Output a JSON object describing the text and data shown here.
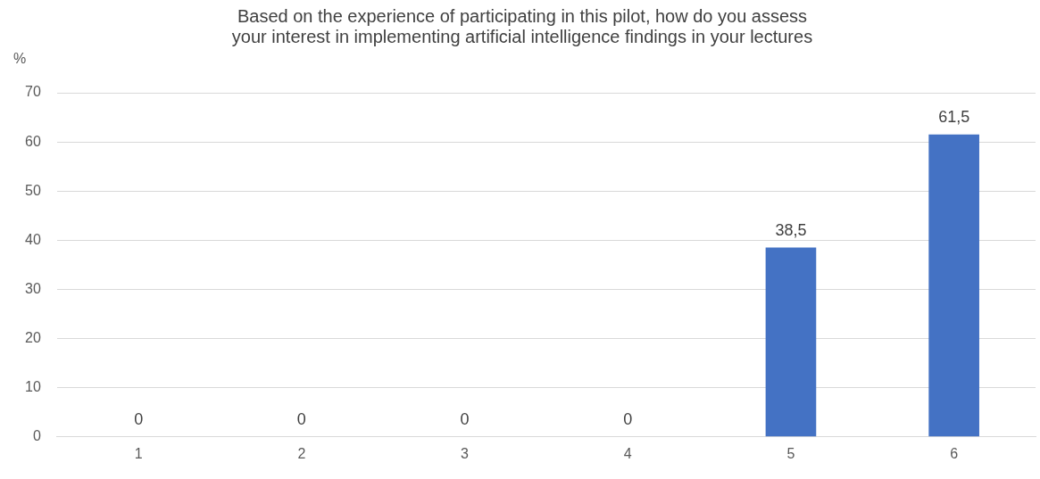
{
  "chart_data": {
    "type": "bar",
    "title": "Based on the experience of participating in this pilot, how do you assess\nyour interest in implementing artificial intelligence findings in your lectures",
    "ylabel": "%",
    "categories": [
      "1",
      "2",
      "3",
      "4",
      "5",
      "6"
    ],
    "values": [
      0,
      0,
      0,
      0,
      38.5,
      61.5
    ],
    "value_labels": [
      "0",
      "0",
      "0",
      "0",
      "38,5",
      "61,5"
    ],
    "color": "#4472c4",
    "ylim": [
      0,
      70
    ],
    "yticks": [
      0,
      10,
      20,
      30,
      40,
      50,
      60,
      70
    ],
    "grid": "y",
    "legend": false
  }
}
